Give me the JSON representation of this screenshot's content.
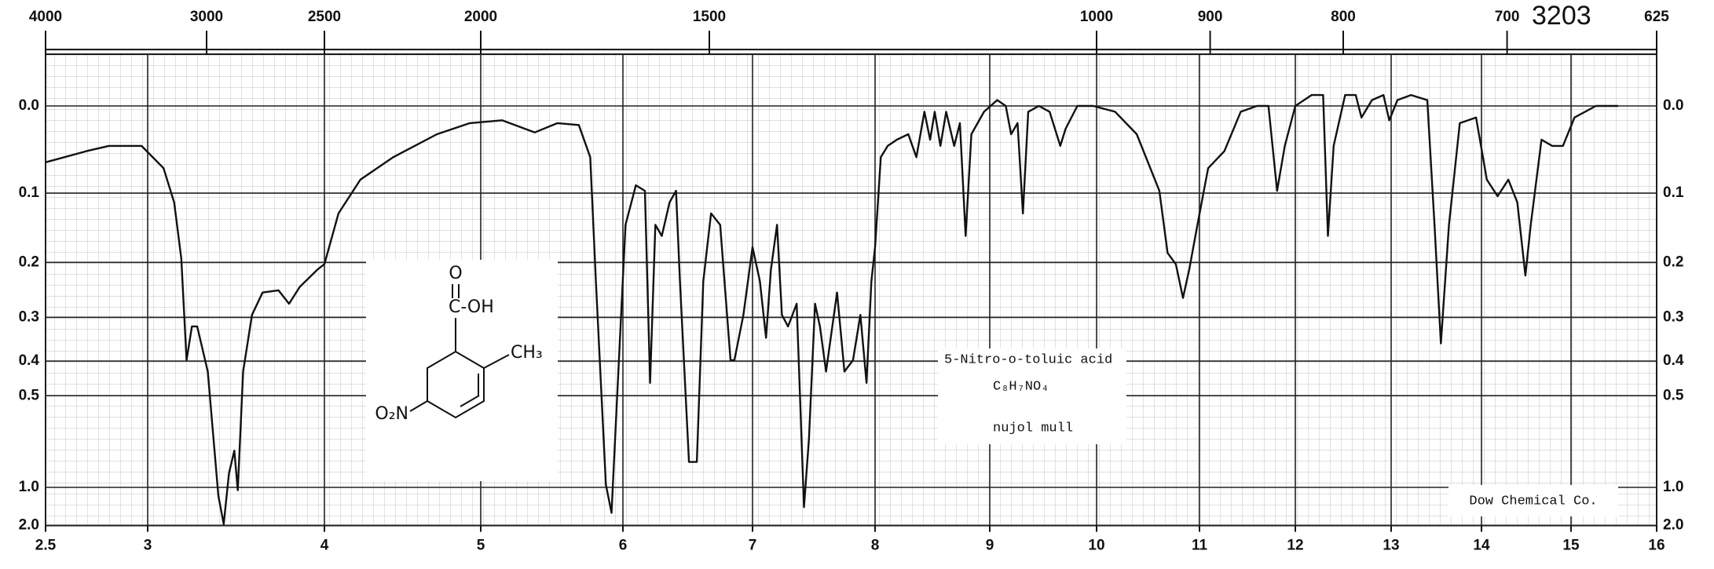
{
  "chart_data": {
    "type": "line",
    "catalog_number": "3203",
    "compound": {
      "name": "5-Nitro-o-toluic acid",
      "formula": "C₈H₇NO₄",
      "sample": "nujol mull"
    },
    "structure": {
      "oxygen": "O",
      "acid": "C-OH",
      "methyl": "CH₃",
      "nitro": "O₂N"
    },
    "credit": "Dow Chemical Co.",
    "yscale": "absorbance",
    "grid": true,
    "color": "#111111",
    "xlim": [
      2.5,
      16
    ],
    "xticks": [
      2.5,
      3,
      4,
      5,
      6,
      7,
      8,
      9,
      10,
      11,
      12,
      13,
      14,
      15,
      16
    ],
    "x2lim": [
      4000,
      625
    ],
    "x2ticks": [
      4000,
      3000,
      2500,
      2000,
      1500,
      1000,
      900,
      800,
      700,
      625
    ],
    "ylim": [
      -0.05,
      2
    ],
    "yticks": [
      {
        "value": 0,
        "label": "0.0"
      },
      0.1,
      0.2,
      0.3,
      0.4,
      0.5,
      {
        "value": 1,
        "label": "1.0"
      },
      {
        "value": 2,
        "label": "2.0"
      }
    ],
    "x": [
      2.5,
      2.7,
      2.81,
      2.97,
      3.09,
      3.15,
      3.19,
      3.22,
      3.25,
      3.28,
      3.34,
      3.4,
      3.43,
      3.46,
      3.49,
      3.51,
      3.54,
      3.59,
      3.65,
      3.74,
      3.8,
      3.86,
      3.96,
      4.0,
      4.09,
      4.23,
      4.44,
      4.72,
      4.93,
      5.15,
      5.38,
      5.54,
      5.69,
      5.77,
      5.81,
      5.88,
      5.92,
      5.96,
      6.02,
      6.1,
      6.17,
      6.21,
      6.25,
      6.3,
      6.36,
      6.41,
      6.44,
      6.51,
      6.57,
      6.62,
      6.68,
      6.75,
      6.83,
      6.86,
      6.93,
      7.0,
      7.06,
      7.11,
      7.15,
      7.2,
      7.24,
      7.29,
      7.36,
      7.42,
      7.46,
      7.51,
      7.55,
      7.6,
      7.69,
      7.75,
      7.82,
      7.88,
      7.93,
      7.97,
      8.0,
      8.05,
      8.11,
      8.19,
      8.29,
      8.36,
      8.43,
      8.48,
      8.52,
      8.57,
      8.62,
      8.69,
      8.74,
      8.79,
      8.84,
      8.95,
      9.07,
      9.15,
      9.2,
      9.26,
      9.31,
      9.36,
      9.46,
      9.56,
      9.66,
      9.71,
      9.82,
      9.97,
      10.18,
      10.39,
      10.61,
      10.69,
      10.77,
      10.84,
      10.9,
      10.98,
      11.09,
      11.26,
      11.43,
      11.6,
      11.72,
      11.81,
      11.89,
      12.0,
      12.17,
      12.29,
      12.34,
      12.4,
      12.52,
      12.63,
      12.69,
      12.8,
      12.92,
      12.98,
      13.07,
      13.22,
      13.4,
      13.48,
      13.55,
      13.64,
      13.76,
      13.94,
      14.06,
      14.18,
      14.3,
      14.4,
      14.49,
      14.55,
      14.67,
      14.79,
      14.91,
      15.04,
      15.29,
      15.55
    ],
    "values": [
      0.062,
      0.049,
      0.043,
      0.043,
      0.069,
      0.112,
      0.194,
      0.398,
      0.319,
      0.319,
      0.428,
      1.097,
      1.875,
      0.875,
      0.729,
      1.03,
      0.428,
      0.295,
      0.252,
      0.248,
      0.273,
      0.242,
      0.212,
      0.203,
      0.127,
      0.083,
      0.056,
      0.03,
      0.018,
      0.015,
      0.028,
      0.018,
      0.02,
      0.056,
      0.232,
      0.972,
      1.398,
      0.495,
      0.143,
      0.09,
      0.097,
      0.46,
      0.143,
      0.159,
      0.112,
      0.097,
      0.232,
      0.796,
      0.796,
      0.232,
      0.127,
      0.143,
      0.398,
      0.398,
      0.295,
      0.176,
      0.232,
      0.344,
      0.212,
      0.143,
      0.295,
      0.319,
      0.273,
      1.273,
      0.671,
      0.273,
      0.319,
      0.428,
      0.252,
      0.428,
      0.398,
      0.295,
      0.46,
      0.232,
      0.176,
      0.056,
      0.043,
      0.036,
      0.03,
      0.056,
      0.006,
      0.036,
      0.006,
      0.043,
      0.006,
      0.043,
      0.018,
      0.159,
      0.03,
      0.006,
      -0.006,
      0,
      0.03,
      0.018,
      0.127,
      0.006,
      0,
      0.006,
      0.043,
      0.024,
      0,
      0,
      0.006,
      0.03,
      0.097,
      0.185,
      0.203,
      0.262,
      0.212,
      0.143,
      0.069,
      0.049,
      0.006,
      0,
      0,
      0.097,
      0.043,
      0,
      -0.011,
      -0.011,
      0.159,
      0.043,
      -0.011,
      -0.011,
      0.012,
      -0.006,
      -0.011,
      0.015,
      -0.006,
      -0.011,
      -0.006,
      0.143,
      0.357,
      0.143,
      0.018,
      0.012,
      0.083,
      0.104,
      0.083,
      0.112,
      0.222,
      0.143,
      0.036,
      0.043,
      0.043,
      0.012,
      0,
      0
    ]
  }
}
